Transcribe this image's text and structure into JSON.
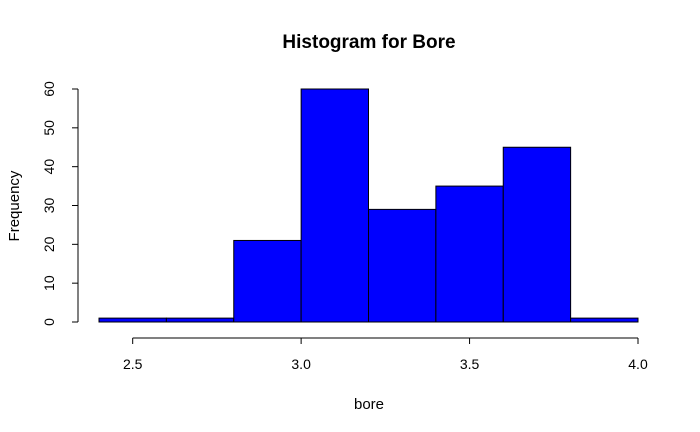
{
  "chart_data": {
    "type": "bar",
    "title": "Histogram for Bore",
    "xlabel": "bore",
    "ylabel": "Frequency",
    "bin_edges": [
      2.4,
      2.6,
      2.8,
      3.0,
      3.2,
      3.4,
      3.6,
      3.8,
      4.0
    ],
    "values": [
      1,
      1,
      21,
      60,
      29,
      35,
      45,
      1
    ],
    "bar_color": "#0000ff",
    "xlim": [
      2.4,
      4.0
    ],
    "ylim": [
      0,
      60
    ],
    "xticks": [
      2.5,
      3.0,
      3.5,
      4.0
    ],
    "xtick_labels": [
      "2.5",
      "3.0",
      "3.5",
      "4.0"
    ],
    "yticks": [
      0,
      10,
      20,
      30,
      40,
      50,
      60
    ],
    "ytick_labels": [
      "0",
      "10",
      "20",
      "30",
      "40",
      "50",
      "60"
    ],
    "grid": false
  }
}
